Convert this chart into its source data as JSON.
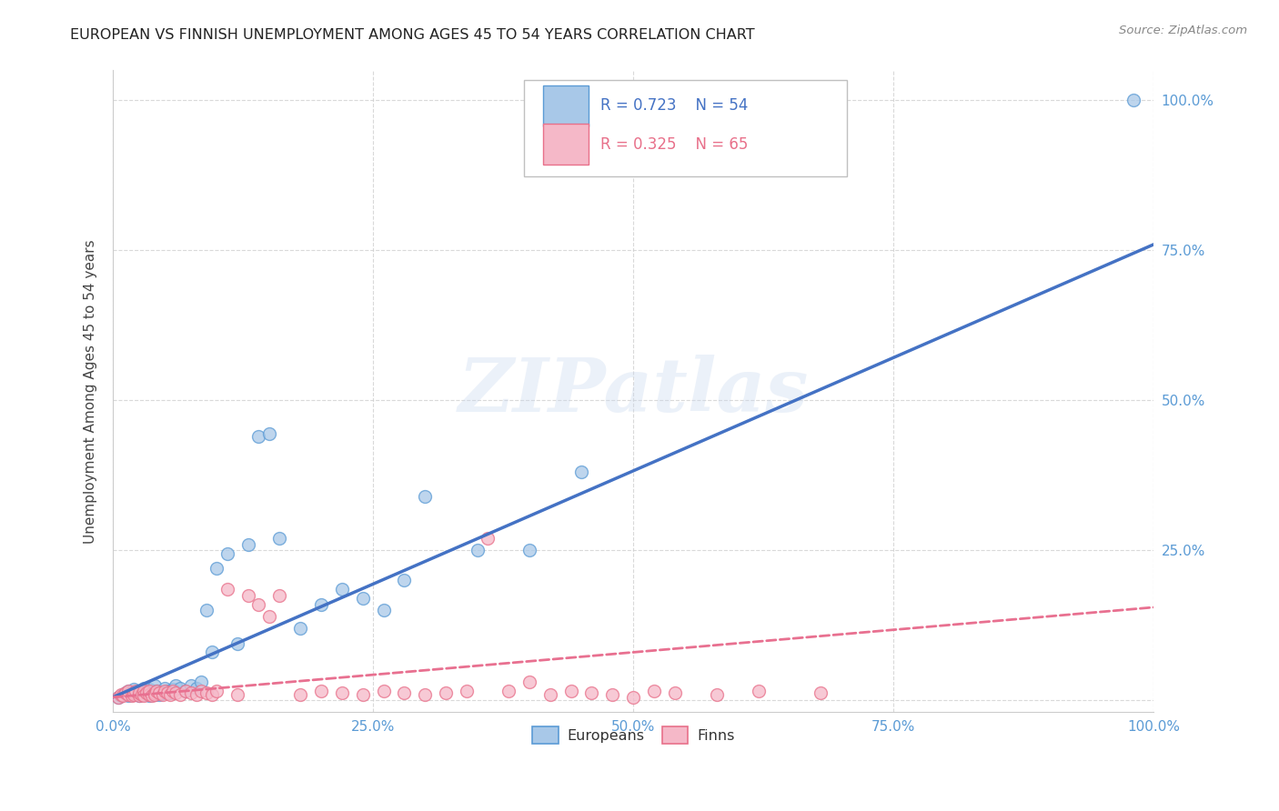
{
  "title": "EUROPEAN VS FINNISH UNEMPLOYMENT AMONG AGES 45 TO 54 YEARS CORRELATION CHART",
  "source": "Source: ZipAtlas.com",
  "ylabel": "Unemployment Among Ages 45 to 54 years",
  "xlim": [
    0.0,
    1.0
  ],
  "ylim": [
    -0.02,
    1.05
  ],
  "xticks": [
    0.0,
    0.25,
    0.5,
    0.75,
    1.0
  ],
  "yticks": [
    0.0,
    0.25,
    0.5,
    0.75,
    1.0
  ],
  "xticklabels": [
    "0.0%",
    "25.0%",
    "50.0%",
    "75.0%",
    "100.0%"
  ],
  "yticklabels": [
    "",
    "25.0%",
    "50.0%",
    "75.0%",
    "100.0%"
  ],
  "background_color": "#ffffff",
  "watermark_text": "ZIPatlas",
  "legend_r_european": "R = 0.723",
  "legend_n_european": "N = 54",
  "legend_r_finn": "R = 0.325",
  "legend_n_finn": "N = 65",
  "european_color": "#a8c8e8",
  "finn_color": "#f5b8c8",
  "european_edge_color": "#5b9bd5",
  "finn_edge_color": "#e8708a",
  "european_line_color": "#4472c4",
  "finn_line_color": "#e87090",
  "grid_color": "#d0d0d0",
  "title_color": "#222222",
  "axis_label_color": "#444444",
  "tick_color": "#5b9bd5",
  "europeans_scatter_x": [
    0.005,
    0.008,
    0.01,
    0.012,
    0.015,
    0.015,
    0.018,
    0.02,
    0.02,
    0.022,
    0.025,
    0.025,
    0.028,
    0.03,
    0.03,
    0.032,
    0.035,
    0.035,
    0.038,
    0.04,
    0.04,
    0.042,
    0.045,
    0.048,
    0.05,
    0.052,
    0.055,
    0.058,
    0.06,
    0.065,
    0.07,
    0.075,
    0.08,
    0.085,
    0.09,
    0.095,
    0.1,
    0.11,
    0.12,
    0.13,
    0.14,
    0.15,
    0.16,
    0.18,
    0.2,
    0.22,
    0.24,
    0.26,
    0.28,
    0.3,
    0.35,
    0.4,
    0.45,
    0.98
  ],
  "europeans_scatter_y": [
    0.005,
    0.008,
    0.01,
    0.012,
    0.008,
    0.015,
    0.01,
    0.012,
    0.018,
    0.01,
    0.008,
    0.015,
    0.012,
    0.01,
    0.02,
    0.015,
    0.008,
    0.018,
    0.012,
    0.01,
    0.025,
    0.015,
    0.01,
    0.012,
    0.02,
    0.015,
    0.012,
    0.018,
    0.025,
    0.02,
    0.015,
    0.025,
    0.02,
    0.03,
    0.15,
    0.08,
    0.22,
    0.245,
    0.095,
    0.26,
    0.44,
    0.445,
    0.27,
    0.12,
    0.16,
    0.185,
    0.17,
    0.15,
    0.2,
    0.34,
    0.25,
    0.25,
    0.38,
    1.0
  ],
  "finns_scatter_x": [
    0.005,
    0.008,
    0.01,
    0.012,
    0.015,
    0.015,
    0.018,
    0.02,
    0.02,
    0.022,
    0.025,
    0.025,
    0.028,
    0.03,
    0.03,
    0.032,
    0.035,
    0.035,
    0.038,
    0.04,
    0.04,
    0.042,
    0.045,
    0.048,
    0.05,
    0.052,
    0.055,
    0.058,
    0.06,
    0.065,
    0.07,
    0.075,
    0.08,
    0.085,
    0.09,
    0.095,
    0.1,
    0.11,
    0.12,
    0.13,
    0.14,
    0.15,
    0.16,
    0.18,
    0.2,
    0.22,
    0.24,
    0.26,
    0.28,
    0.3,
    0.32,
    0.34,
    0.36,
    0.38,
    0.4,
    0.42,
    0.44,
    0.46,
    0.48,
    0.5,
    0.52,
    0.54,
    0.58,
    0.62,
    0.68
  ],
  "finns_scatter_y": [
    0.005,
    0.01,
    0.008,
    0.012,
    0.01,
    0.015,
    0.008,
    0.012,
    0.01,
    0.015,
    0.008,
    0.012,
    0.01,
    0.015,
    0.008,
    0.012,
    0.01,
    0.015,
    0.008,
    0.012,
    0.01,
    0.015,
    0.012,
    0.01,
    0.015,
    0.012,
    0.01,
    0.015,
    0.012,
    0.01,
    0.015,
    0.012,
    0.01,
    0.015,
    0.012,
    0.01,
    0.015,
    0.185,
    0.01,
    0.175,
    0.16,
    0.14,
    0.175,
    0.01,
    0.015,
    0.012,
    0.01,
    0.015,
    0.012,
    0.01,
    0.012,
    0.015,
    0.27,
    0.015,
    0.03,
    0.01,
    0.015,
    0.012,
    0.01,
    0.005,
    0.015,
    0.012,
    0.01,
    0.015,
    0.012
  ],
  "european_trendline_x": [
    0.0,
    1.0
  ],
  "european_trendline_y": [
    0.005,
    0.76
  ],
  "finn_trendline_x": [
    0.0,
    1.0
  ],
  "finn_trendline_y": [
    0.005,
    0.155
  ]
}
